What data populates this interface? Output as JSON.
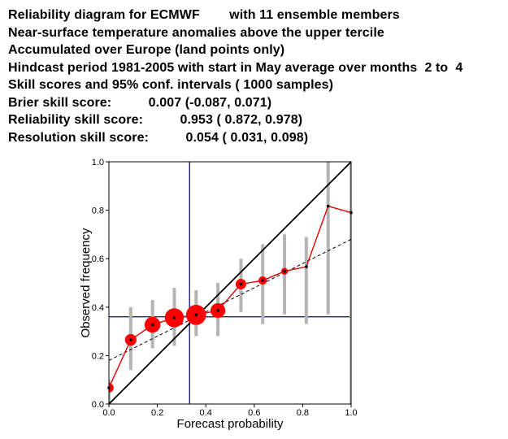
{
  "header_lines": [
    "Reliability diagram for ECMWF        with 11 ensemble members",
    "Near-surface temperature anomalies above the upper tercile",
    "Accumulated over Europe (land points only)",
    "Hindcast period 1981-2005 with start in May average over months  2 to  4",
    "Skill scores and 95% conf. intervals ( 1000 samples)",
    "Brier skill score:          0.007 (-0.087, 0.071)",
    "Reliability skill score:          0.953 ( 0.872, 0.978)",
    "Resolution skill score:          0.054 ( 0.031, 0.098)"
  ],
  "colors": {
    "diagonal": "#000000",
    "reliability_line": "#e00000",
    "points": "#ff0000",
    "error_bars": "#b4b4b4",
    "climatology": "#1a1aa6",
    "fit_line": "#000000",
    "frame": "#000000"
  },
  "chart_data": {
    "type": "scatter",
    "xlabel": "Forecast probability",
    "ylabel": "Observed frequency",
    "xlim": [
      0,
      1
    ],
    "ylim": [
      0,
      1
    ],
    "x_ticks": [
      "0.0",
      "0.2",
      "0.4",
      "0.6",
      "0.8",
      "1.0"
    ],
    "y_ticks": [
      "0.0",
      "0.2",
      "0.4",
      "0.6",
      "0.8",
      "1.0"
    ],
    "perfect_reliability": [
      [
        0,
        0
      ],
      [
        1,
        1
      ]
    ],
    "climatology_x": 0.333,
    "climatology_y": 0.36,
    "weighted_fit": [
      [
        0,
        0.18
      ],
      [
        1,
        0.68
      ]
    ],
    "points": [
      {
        "x": 0.0,
        "y": 0.067,
        "ci": [
          0.0,
          0.1
        ],
        "weight": 0.45
      },
      {
        "x": 0.09,
        "y": 0.265,
        "ci": [
          0.14,
          0.4
        ],
        "weight": 0.55
      },
      {
        "x": 0.18,
        "y": 0.327,
        "ci": [
          0.23,
          0.43
        ],
        "weight": 0.75
      },
      {
        "x": 0.27,
        "y": 0.356,
        "ci": [
          0.24,
          0.48
        ],
        "weight": 0.9
      },
      {
        "x": 0.36,
        "y": 0.368,
        "ci": [
          0.28,
          0.47
        ],
        "weight": 0.95
      },
      {
        "x": 0.45,
        "y": 0.386,
        "ci": [
          0.28,
          0.5
        ],
        "weight": 0.7
      },
      {
        "x": 0.545,
        "y": 0.495,
        "ci": [
          0.38,
          0.6
        ],
        "weight": 0.5
      },
      {
        "x": 0.635,
        "y": 0.51,
        "ci": [
          0.33,
          0.66
        ],
        "weight": 0.4
      },
      {
        "x": 0.725,
        "y": 0.548,
        "ci": [
          0.37,
          0.7
        ],
        "weight": 0.32
      },
      {
        "x": 0.815,
        "y": 0.567,
        "ci": [
          0.33,
          0.69
        ],
        "weight": 0.15
      },
      {
        "x": 0.905,
        "y": 0.817,
        "ci": [
          0.37,
          1.0
        ],
        "weight": 0.1
      },
      {
        "x": 1.0,
        "y": 0.79,
        "ci": [
          0.0,
          1.0
        ],
        "weight": 0.1
      }
    ]
  }
}
